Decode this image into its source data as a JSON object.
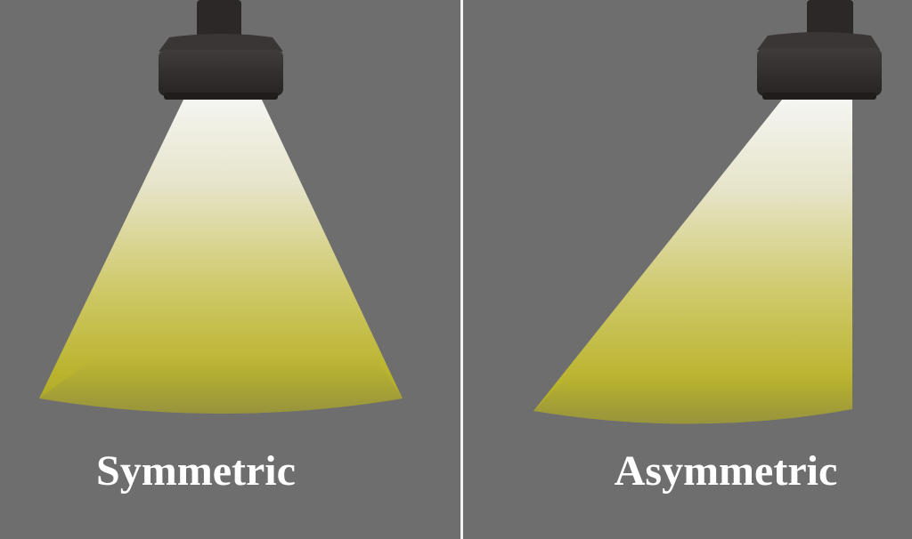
{
  "panels": [
    {
      "label": "Symmetric"
    },
    {
      "label": "Asymmetric"
    }
  ],
  "colors": {
    "background": "#6e6e6e",
    "divider": "#f2f2f2",
    "fixture_body": "#2e2b2a",
    "beam_top": "#f4f4f2",
    "beam_bottom": "#b3ad25",
    "label": "#ffffff"
  }
}
